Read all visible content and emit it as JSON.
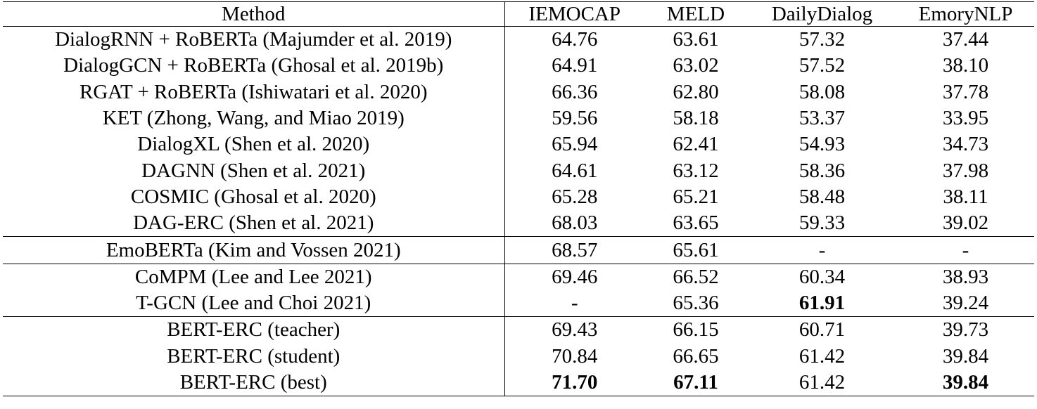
{
  "columns": [
    "Method",
    "IEMOCAP",
    "MELD",
    "DailyDialog",
    "EmoryNLP"
  ],
  "groups": [
    [
      {
        "method": "DialogRNN + RoBERTa (Majumder et al. 2019)",
        "values": [
          "64.76",
          "63.61",
          "57.32",
          "37.44"
        ],
        "bold": [
          false,
          false,
          false,
          false
        ]
      },
      {
        "method": "DialogGCN + RoBERTa (Ghosal et al. 2019b)",
        "values": [
          "64.91",
          "63.02",
          "57.52",
          "38.10"
        ],
        "bold": [
          false,
          false,
          false,
          false
        ]
      },
      {
        "method": "RGAT + RoBERTa (Ishiwatari et al. 2020)",
        "values": [
          "66.36",
          "62.80",
          "58.08",
          "37.78"
        ],
        "bold": [
          false,
          false,
          false,
          false
        ]
      },
      {
        "method": "KET (Zhong, Wang, and Miao 2019)",
        "values": [
          "59.56",
          "58.18",
          "53.37",
          "33.95"
        ],
        "bold": [
          false,
          false,
          false,
          false
        ]
      },
      {
        "method": "DialogXL (Shen et al. 2020)",
        "values": [
          "65.94",
          "62.41",
          "54.93",
          "34.73"
        ],
        "bold": [
          false,
          false,
          false,
          false
        ]
      },
      {
        "method": "DAGNN (Shen et al. 2021)",
        "values": [
          "64.61",
          "63.12",
          "58.36",
          "37.98"
        ],
        "bold": [
          false,
          false,
          false,
          false
        ]
      },
      {
        "method": "COSMIC (Ghosal et al. 2020)",
        "values": [
          "65.28",
          "65.21",
          "58.48",
          "38.11"
        ],
        "bold": [
          false,
          false,
          false,
          false
        ]
      },
      {
        "method": "DAG-ERC (Shen et al. 2021)",
        "values": [
          "68.03",
          "63.65",
          "59.33",
          "39.02"
        ],
        "bold": [
          false,
          false,
          false,
          false
        ]
      }
    ],
    [
      {
        "method": "EmoBERTa (Kim and Vossen 2021)",
        "values": [
          "68.57",
          "65.61",
          "-",
          "-"
        ],
        "bold": [
          false,
          false,
          false,
          false
        ]
      }
    ],
    [
      {
        "method": "CoMPM (Lee and Lee 2021)",
        "values": [
          "69.46",
          "66.52",
          "60.34",
          "38.93"
        ],
        "bold": [
          false,
          false,
          false,
          false
        ]
      },
      {
        "method": "T-GCN (Lee and Choi 2021)",
        "values": [
          "-",
          "65.36",
          "61.91",
          "39.24"
        ],
        "bold": [
          false,
          false,
          true,
          false
        ]
      }
    ],
    [
      {
        "method": "BERT-ERC (teacher)",
        "values": [
          "69.43",
          "66.15",
          "60.71",
          "39.73"
        ],
        "bold": [
          false,
          false,
          false,
          false
        ]
      },
      {
        "method": "BERT-ERC (student)",
        "values": [
          "70.84",
          "66.65",
          "61.42",
          "39.84"
        ],
        "bold": [
          false,
          false,
          false,
          false
        ]
      },
      {
        "method": "BERT-ERC (best)",
        "values": [
          "71.70",
          "67.11",
          "61.42",
          "39.84"
        ],
        "bold": [
          true,
          true,
          false,
          true
        ]
      }
    ]
  ]
}
